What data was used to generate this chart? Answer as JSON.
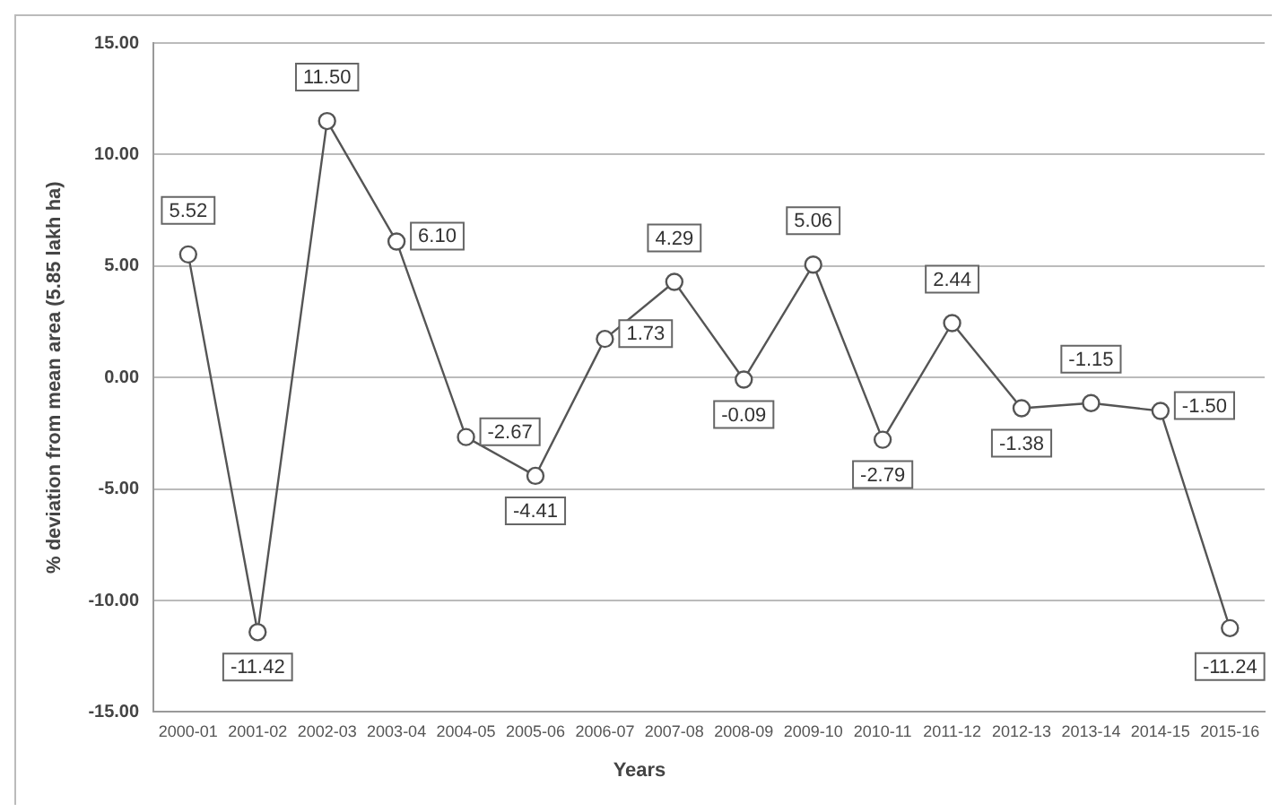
{
  "chart_data": {
    "type": "line",
    "xlabel": "Years",
    "ylabel": "% deviation from mean area (5.85 lakh ha)",
    "categories": [
      "2000-01",
      "2001-02",
      "2002-03",
      "2003-04",
      "2004-05",
      "2005-06",
      "2006-07",
      "2007-08",
      "2008-09",
      "2009-10",
      "2010-11",
      "2011-12",
      "2012-13",
      "2013-14",
      "2014-15",
      "2015-16"
    ],
    "series": [
      {
        "color": "#555555",
        "values": [
          5.52,
          -11.42,
          11.5,
          6.1,
          -2.67,
          -4.41,
          1.73,
          4.29,
          -0.09,
          5.06,
          -2.79,
          2.44,
          -1.38,
          -1.15,
          -1.5,
          -11.24
        ],
        "value_labels": [
          "5.52",
          "-11.42",
          "11.50",
          "6.10",
          "-2.67",
          "-4.41",
          "1.73",
          "4.29",
          "-0.09",
          "5.06",
          "-2.79",
          "2.44",
          "-1.38",
          "-1.15",
          "-1.50",
          "-11.24"
        ]
      }
    ],
    "ylim": [
      -15,
      15
    ],
    "yticks": [
      {
        "value": -15,
        "label": "-15.00"
      },
      {
        "value": -10,
        "label": "-10.00"
      },
      {
        "value": -5,
        "label": "-5.00"
      },
      {
        "value": 0,
        "label": "0.00"
      },
      {
        "value": 5,
        "label": "5.00"
      },
      {
        "value": 10,
        "label": "10.00"
      },
      {
        "value": 15,
        "label": "15.00"
      }
    ],
    "grid": "y",
    "legend": false,
    "marker": "circle",
    "line_style": "solid"
  }
}
